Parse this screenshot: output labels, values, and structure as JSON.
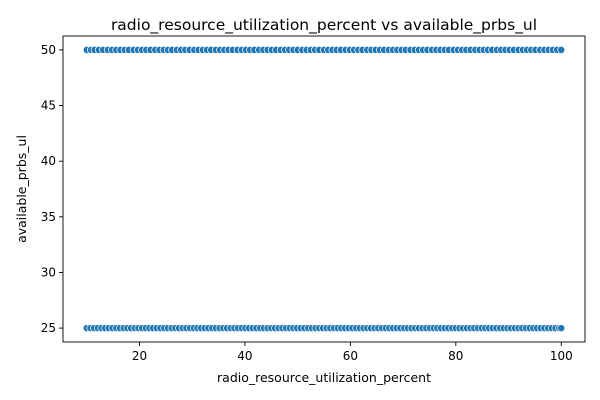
{
  "chart_data": {
    "type": "scatter",
    "title": "radio_resource_utilization_percent vs available_prbs_ul",
    "xlabel": "radio_resource_utilization_percent",
    "ylabel": "available_prbs_ul",
    "xlim": [
      5.5,
      104.5
    ],
    "ylim": [
      23.75,
      51.25
    ],
    "xticks": [
      20,
      40,
      60,
      80,
      100
    ],
    "yticks": [
      25,
      30,
      35,
      40,
      45,
      50
    ],
    "grid": false,
    "legend": "none",
    "point_color": "#1f77b4",
    "series": [
      {
        "values": [
          {
            "y": 50,
            "x": [
              10,
              10.8,
              11.5,
              12.3,
              13.1,
              14,
              14.8,
              15.6,
              16.4,
              17.2,
              18,
              18.9,
              19.7,
              20.5,
              21.3,
              22.1,
              23,
              23.8,
              24.6,
              25.4,
              26.2,
              27.1,
              27.9,
              28.7,
              29.5,
              30.4,
              31.2,
              32,
              32.8,
              33.6,
              34.5,
              35.3,
              36.1,
              36.9,
              37.7,
              38.6,
              39.4,
              40.2,
              41,
              41.8,
              42.7,
              43.5,
              44.3,
              45.1,
              45.9,
              46.8,
              47.6,
              48.4,
              49.2,
              50,
              50.9,
              51.7,
              52.5,
              53.3,
              54.1,
              55,
              55.8,
              56.6,
              57.4,
              58.2,
              59.1,
              59.9,
              60.7,
              61.5,
              62.3,
              63.2,
              64,
              64.8,
              65.6,
              66.4,
              67.3,
              68.1,
              68.9,
              69.7,
              70.5,
              71.4,
              72.2,
              73,
              73.8,
              74.6,
              75.5,
              76.3,
              77.1,
              77.9,
              78.7,
              79.6,
              80.4,
              81.2,
              82,
              82.8,
              83.7,
              84.5,
              85.3,
              86.1,
              86.9,
              87.8,
              88.6,
              89.4,
              90.2,
              91,
              91.9,
              92.7,
              93.5,
              94.3,
              95.1,
              96,
              96.8,
              97.6,
              98.4,
              99.2,
              100
            ]
          },
          {
            "y": 25,
            "x": [
              10,
              10.7,
              11.4,
              12.1,
              12.8,
              13.5,
              14.2,
              14.9,
              15.6,
              16.3,
              17,
              17.7,
              18.4,
              19.1,
              19.8,
              20.5,
              21.2,
              21.9,
              22.6,
              23.3,
              24,
              24.7,
              25.4,
              26.1,
              26.8,
              27.5,
              28.2,
              28.9,
              29.6,
              30.3,
              31,
              31.7,
              32.4,
              33.1,
              33.8,
              34.5,
              35.2,
              35.9,
              36.6,
              37.3,
              38,
              38.7,
              39.4,
              40.1,
              40.8,
              41.5,
              42.2,
              42.9,
              43.6,
              44.3,
              45,
              45.7,
              46.4,
              47.1,
              47.8,
              48.5,
              49.2,
              49.9,
              50.6,
              51.3,
              52,
              52.7,
              53.4,
              54.1,
              54.8,
              55.5,
              56.2,
              56.9,
              57.6,
              58.3,
              59,
              59.7,
              60.4,
              61.1,
              61.8,
              62.5,
              63.2,
              63.9,
              64.6,
              65.3,
              66,
              66.7,
              67.4,
              68.1,
              68.8,
              69.5,
              70.2,
              70.9,
              71.6,
              72.3,
              73,
              73.7,
              74.4,
              75.1,
              75.8,
              76.5,
              77.2,
              77.9,
              78.6,
              79.3,
              80,
              80.7,
              81.4,
              82.1,
              82.8,
              83.5,
              84.2,
              84.9,
              85.6,
              86.3,
              87,
              87.7,
              88.4,
              89.1,
              89.8,
              90.5,
              91.2,
              91.9,
              92.6,
              93.3,
              94,
              94.7,
              95.4,
              96.1,
              96.8,
              97.5,
              98.2,
              98.9,
              99.6,
              100
            ]
          }
        ]
      }
    ]
  }
}
